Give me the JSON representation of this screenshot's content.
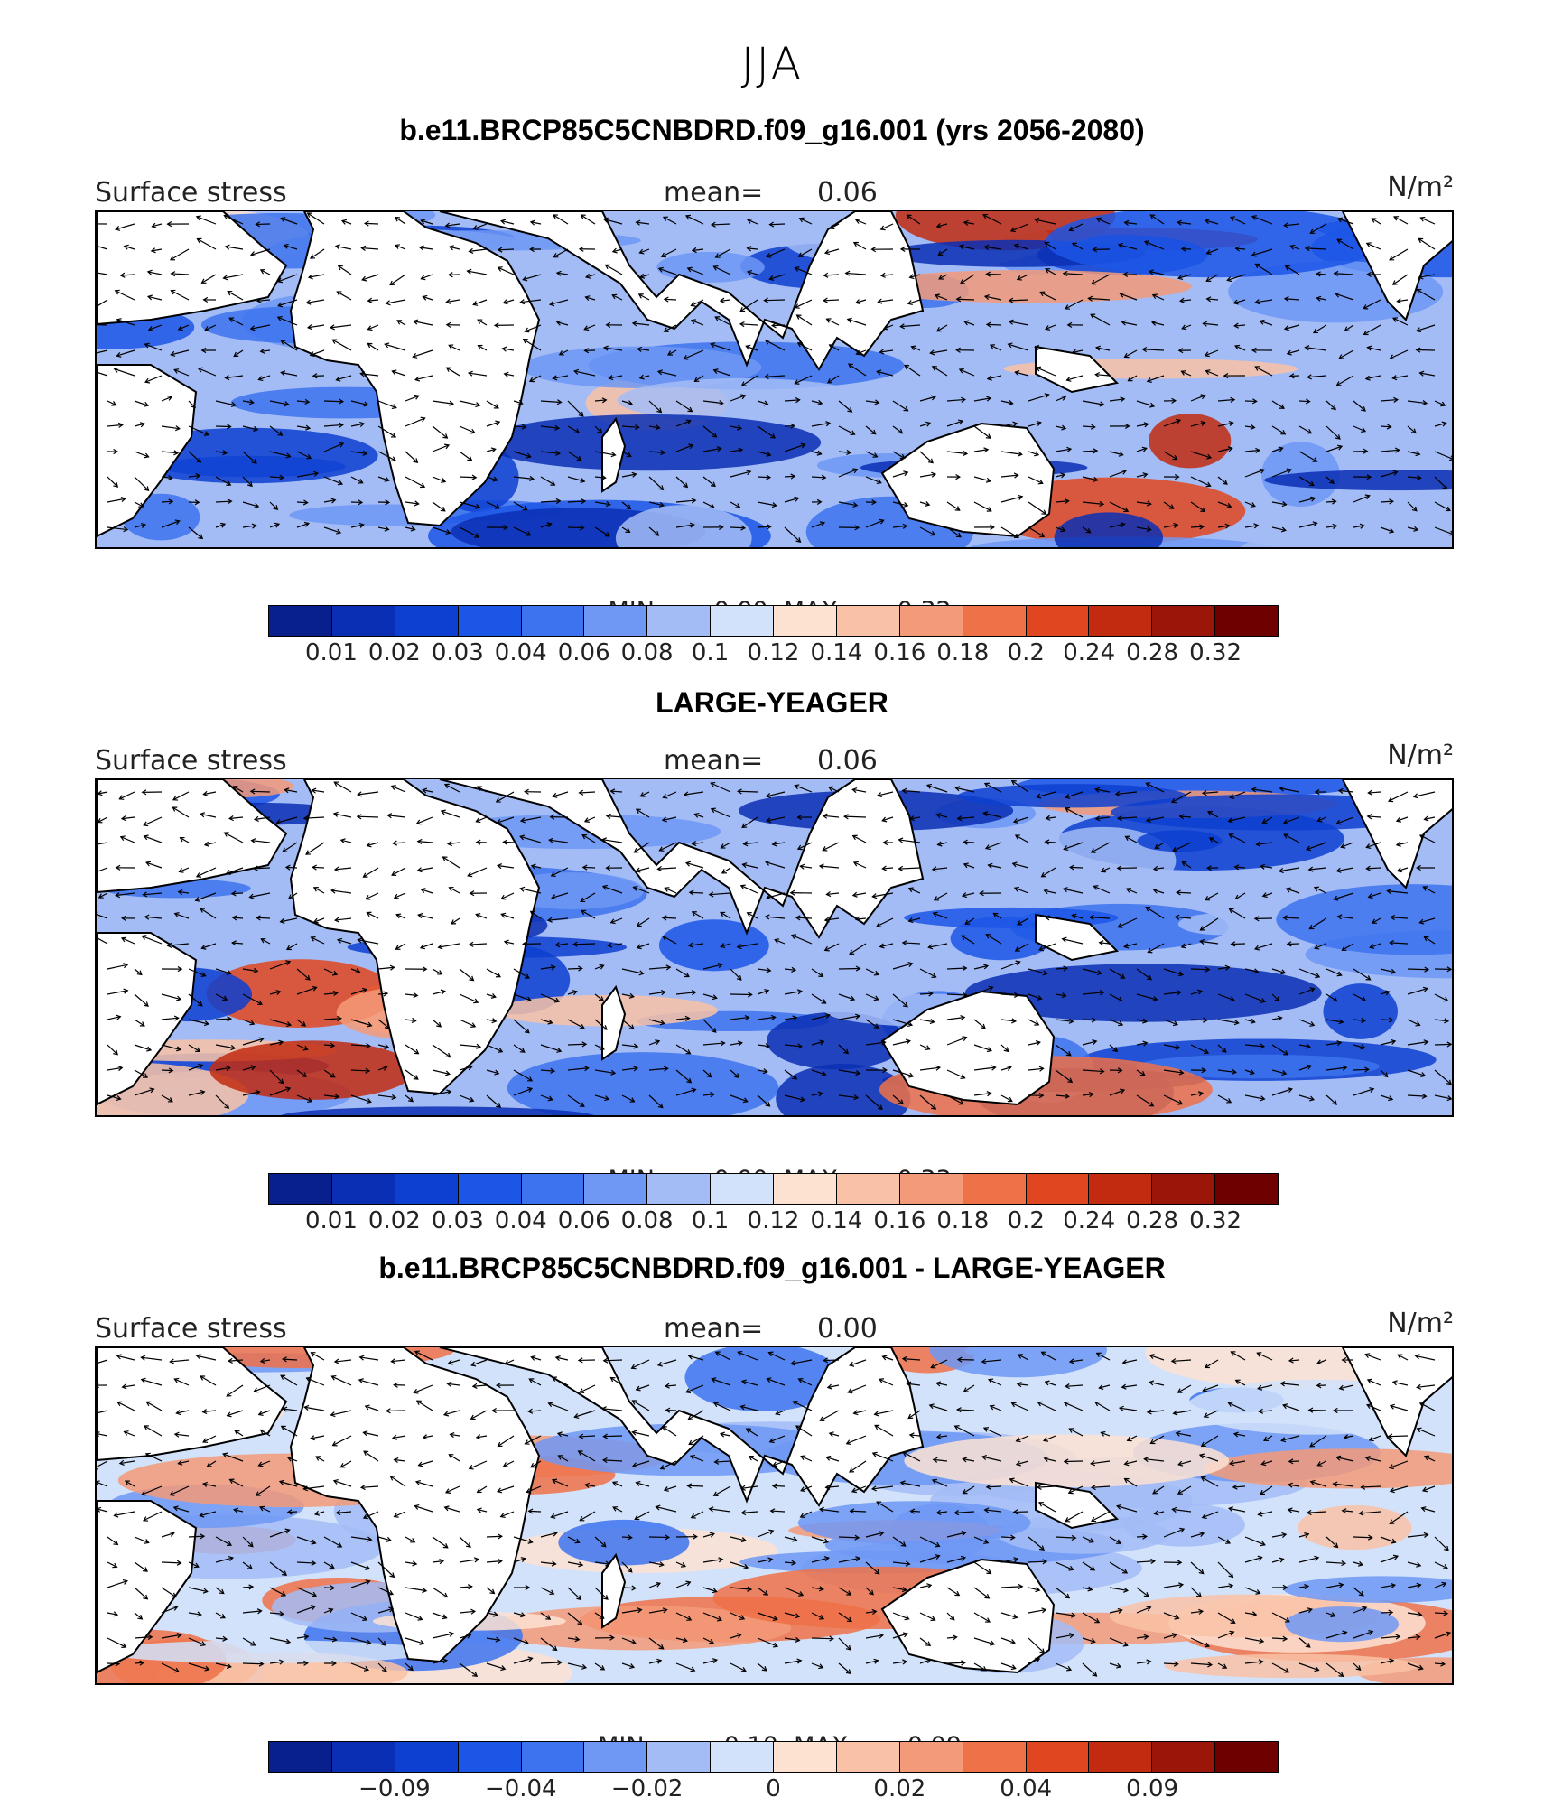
{
  "season": "JJA",
  "colors": {
    "palette": [
      "#08208c",
      "#0a2fb4",
      "#0d3fd0",
      "#1c56e6",
      "#3d73ee",
      "#6f98f4",
      "#a3bcf6",
      "#d2e2fa",
      "#fde2d2",
      "#f9c2a6",
      "#f39a78",
      "#ee7148",
      "#e0461f",
      "#c22b10",
      "#9b1508",
      "#6e0000"
    ],
    "diff_palette": [
      "#08208c",
      "#0a2fb4",
      "#0d3fd0",
      "#1c56e6",
      "#3d73ee",
      "#6f98f4",
      "#a3bcf6",
      "#d2e2fa",
      "#fde2d2",
      "#f9c2a6",
      "#f39a78",
      "#ee7148",
      "#e0461f",
      "#c22b10",
      "#9b1508",
      "#6e0000"
    ]
  },
  "panels": [
    {
      "title": "b.e11.BRCP85C5CNBDRD.f09_g16.001 (yrs 2056-2080)",
      "variable": "Surface stress",
      "mean_label": "mean=",
      "mean_value": "0.06",
      "units": "N/m²",
      "min_label": "MIN =",
      "min_value": "0.00",
      "max_label": "MAX =",
      "max_value": "0.32",
      "field": "mean",
      "colorbar_ticks": [
        "0.01",
        "0.02",
        "0.03",
        "0.04",
        "0.06",
        "0.08",
        "0.1",
        "0.12",
        "0.14",
        "0.16",
        "0.18",
        "0.2",
        "0.24",
        "0.28",
        "0.32"
      ]
    },
    {
      "title": "LARGE-YEAGER",
      "variable": "Surface stress",
      "mean_label": "mean=",
      "mean_value": "0.06",
      "units": "N/m²",
      "min_label": "MIN =",
      "min_value": "0.00",
      "max_label": "MAX =",
      "max_value": "0.33",
      "field": "mean",
      "colorbar_ticks": [
        "0.01",
        "0.02",
        "0.03",
        "0.04",
        "0.06",
        "0.08",
        "0.1",
        "0.12",
        "0.14",
        "0.16",
        "0.18",
        "0.2",
        "0.24",
        "0.28",
        "0.32"
      ]
    },
    {
      "title": "b.e11.BRCP85C5CNBDRD.f09_g16.001 - LARGE-YEAGER",
      "variable": "Surface stress",
      "mean_label": "mean=",
      "mean_value": "0.00",
      "units": "N/m²",
      "min_label": "MIN =",
      "min_value": "−0.10",
      "max_label": "MAX =",
      "max_value": "0.09",
      "field": "diff",
      "colorbar_ticks": [
        "",
        "−0.09",
        "",
        "−0.04",
        "",
        "−0.02",
        "",
        "0",
        "",
        "0.02",
        "",
        "0.04",
        "",
        "0.09",
        ""
      ]
    }
  ]
}
